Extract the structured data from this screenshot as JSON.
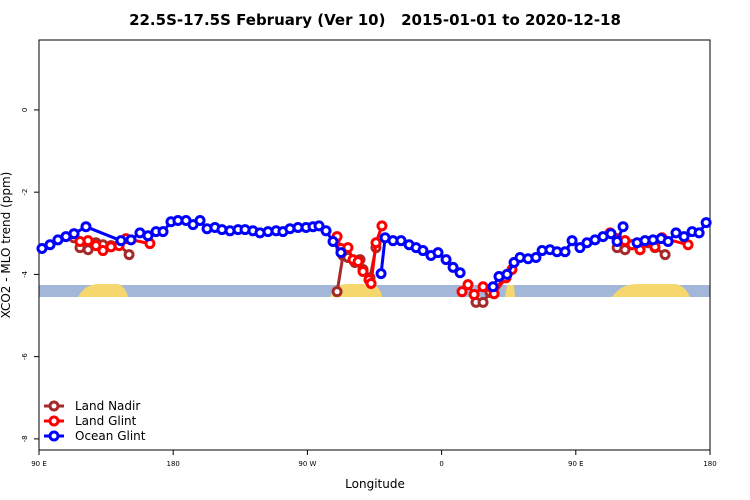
{
  "chart_data": {
    "type": "line",
    "title": "22.5S-17.5S February (Ver 10)   2015-01-01 to 2020-12-18",
    "xlabel": "Longitude",
    "ylabel": "XCO2 - MLO trend (ppm)",
    "xlim": [
      90,
      540
    ],
    "ylim": [
      -8.27,
      1.7
    ],
    "xticks": [
      {
        "value": 90,
        "label": "90 E"
      },
      180,
      {
        "value": 270,
        "label": "90 W"
      },
      {
        "value": 360,
        "label": "0"
      },
      {
        "value": 450,
        "label": "90 E"
      },
      {
        "value": 540,
        "label": "180"
      }
    ],
    "yticks": [
      0,
      -2,
      -4,
      -6,
      -8
    ],
    "legend": "lower left",
    "series": [
      {
        "name": "Land Nadir",
        "color": "#a52a2a",
        "x": [
          113.5,
          117.5,
          122.9,
          128.2,
          132.9,
          138.3,
          143.7,
          150.4,
          null,
          289.9,
          293.9,
          297.2,
          301.9,
          305.3,
          307.3,
          312,
          316,
          null,
          383.1,
          387.8,
          392.5,
          403.2,
          null,
          477.7,
          483,
          487.7,
          493.1,
          498.5,
          503.1,
          509.9
        ],
        "values": [
          -3.11,
          -3.35,
          -3.4,
          -3.23,
          -3.28,
          -3.3,
          -3.28,
          -3.52,
          null,
          -4.42,
          -3.54,
          -3.59,
          -3.71,
          -3.64,
          -3.88,
          -4.08,
          -3.35,
          null,
          -4.68,
          -4.68,
          -4.44,
          -4.08,
          null,
          -3.35,
          -3.4,
          -3.28,
          -3.4,
          -3.23,
          -3.35,
          -3.52
        ]
      },
      {
        "name": "Land Glint",
        "color": "#ff0000",
        "x": [
          113.5,
          117.5,
          122.9,
          128.2,
          132.9,
          138.3,
          143.7,
          148.4,
          164.4,
          null,
          289.9,
          292.5,
          297.2,
          300.6,
          304,
          307.3,
          311.3,
          312.7,
          316,
          320,
          null,
          373.7,
          377.7,
          381.8,
          387.8,
          395.2,
          403.2,
          407.2,
          null,
          473,
          477.7,
          483,
          487.7,
          493.1,
          498.5,
          503.1,
          507.8,
          525.3
        ],
        "values": [
          -3.01,
          -3.2,
          -3.18,
          -3.3,
          -3.42,
          -3.33,
          -3.3,
          -3.13,
          -3.25,
          null,
          -3.08,
          -3.37,
          -3.35,
          -3.64,
          -3.69,
          -3.93,
          -4.13,
          -4.22,
          -3.23,
          -2.82,
          null,
          -4.42,
          -4.25,
          -4.49,
          -4.3,
          -4.47,
          -4.08,
          -3.88,
          null,
          -2.99,
          -3.13,
          -3.18,
          -3.28,
          -3.4,
          -3.2,
          -3.33,
          -3.11,
          -3.28
        ]
      },
      {
        "name": "Ocean Glint",
        "color": "#0000ff",
        "x": [
          92,
          97.4,
          102.7,
          108.1,
          113.5,
          121.5,
          145,
          151.7,
          157.7,
          163.1,
          168.5,
          173.2,
          178.5,
          183.2,
          188.6,
          193.3,
          198,
          202.7,
          208,
          212.7,
          218.1,
          223.5,
          228.2,
          233.5,
          238.2,
          243.6,
          249,
          253.6,
          258.3,
          263.7,
          269.1,
          273.8,
          277.8,
          282.5,
          287.2,
          292.5,
          null,
          319.4,
          322.1,
          327.4,
          332.8,
          338.2,
          342.9,
          347.5,
          352.9,
          357.6,
          363,
          367.7,
          372.4,
          null,
          394.5,
          398.5,
          403.9,
          408.6,
          412.6,
          418,
          423.3,
          427.4,
          432.7,
          437.4,
          442.8,
          447.5,
          452.8,
          457.5,
          462.9,
          468.3,
          473.6,
          477.7,
          481.7,
          null,
          491.1,
          496.4,
          501.8,
          507.2,
          511.9,
          517.2,
          522.6,
          528,
          532.7,
          537.4
        ],
        "values": [
          -3.37,
          -3.28,
          -3.16,
          -3.08,
          -3.01,
          -2.84,
          -3.18,
          -3.16,
          -2.99,
          -3.06,
          -2.96,
          -2.96,
          -2.72,
          -2.69,
          -2.69,
          -2.79,
          -2.69,
          -2.89,
          -2.86,
          -2.91,
          -2.94,
          -2.91,
          -2.91,
          -2.94,
          -2.99,
          -2.96,
          -2.94,
          -2.96,
          -2.89,
          -2.86,
          -2.86,
          -2.84,
          -2.82,
          -2.94,
          -3.2,
          -3.47,
          null,
          -3.98,
          -3.11,
          -3.18,
          -3.18,
          -3.28,
          -3.35,
          -3.42,
          -3.54,
          -3.47,
          -3.64,
          -3.83,
          -3.96,
          null,
          -4.3,
          -4.05,
          -4.0,
          -3.71,
          -3.59,
          -3.62,
          -3.59,
          -3.42,
          -3.4,
          -3.45,
          -3.45,
          -3.18,
          -3.35,
          -3.23,
          -3.16,
          -3.08,
          -3.01,
          -3.2,
          -2.84,
          null,
          -3.23,
          -3.18,
          -3.16,
          -3.13,
          -3.2,
          -2.99,
          -3.08,
          -2.96,
          -2.99,
          -2.74
        ]
      }
    ]
  }
}
